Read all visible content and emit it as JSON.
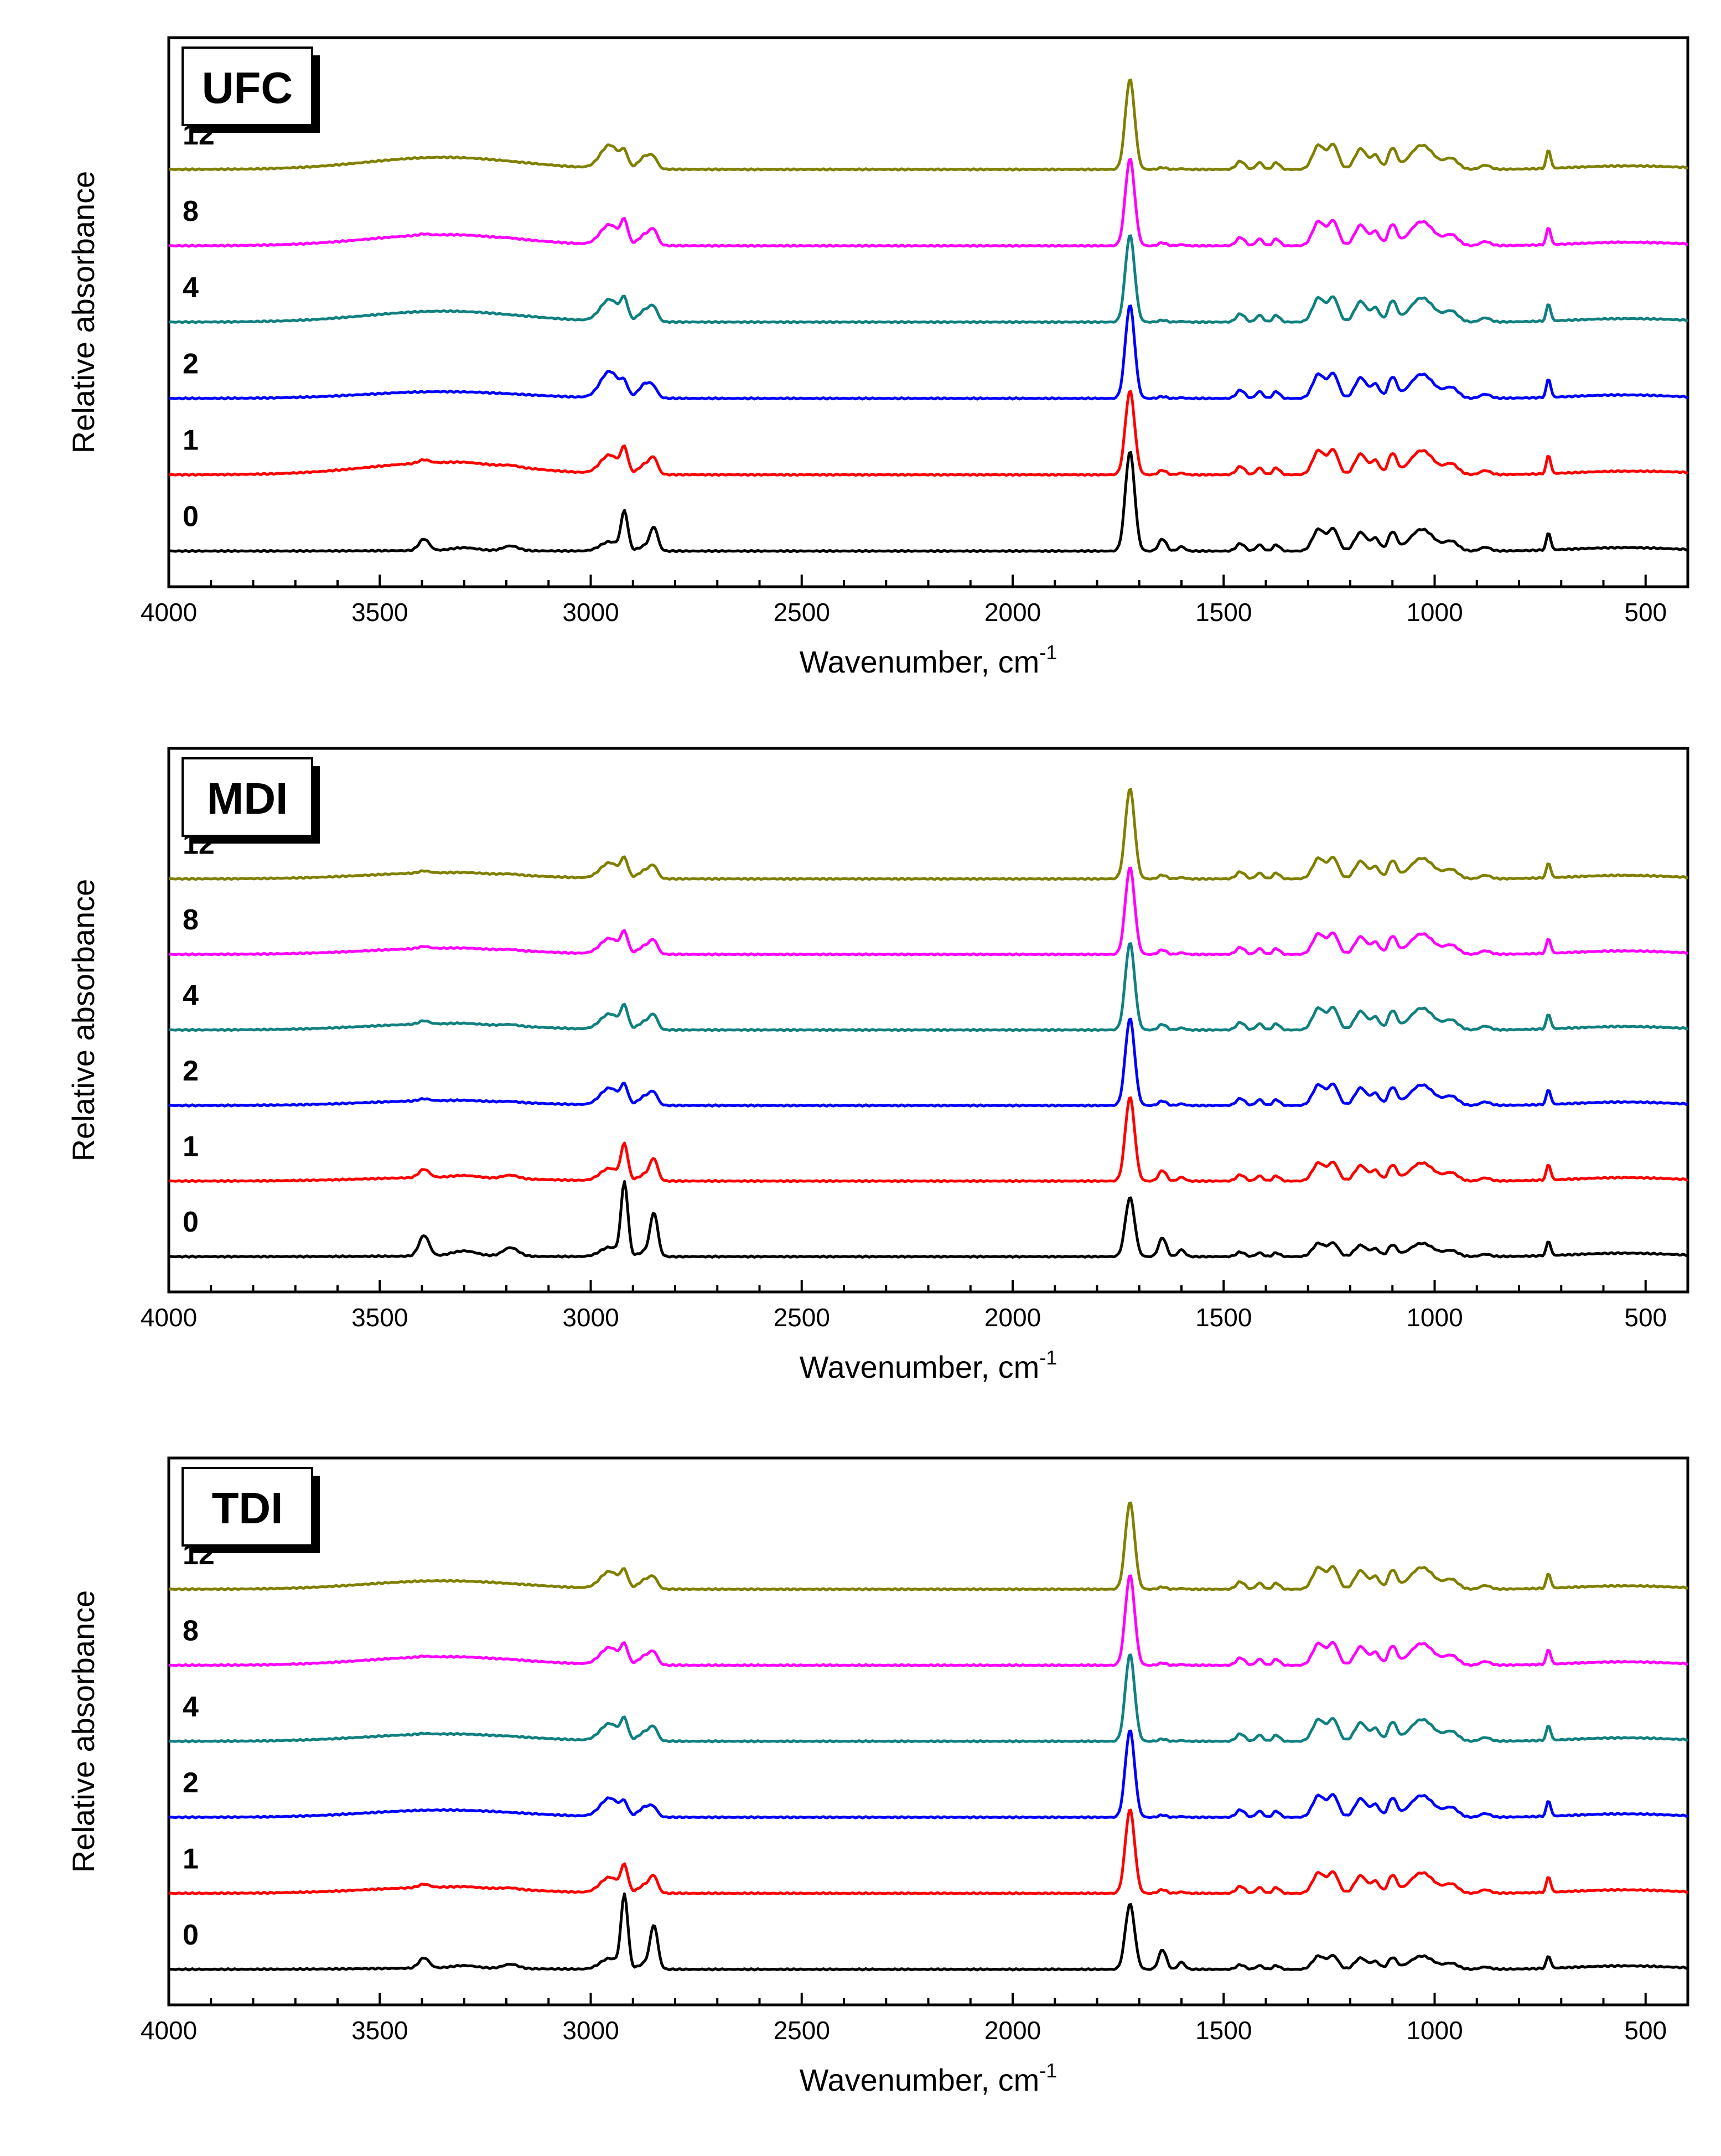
{
  "colors": {
    "0": "#000000",
    "1": "#ff0000",
    "2": "#0000ff",
    "4": "#108080",
    "8": "#ff00ff",
    "12": "#808000",
    "axis": "#000000",
    "tag_shadow": "#000000",
    "tag_fill": "#ffffff"
  },
  "chart_data": [
    {
      "type": "line",
      "panel": "UFC",
      "xlabel": "Wavenumber, cm",
      "xlabel_superscript": "-1",
      "ylabel": "Relative absorbance",
      "xlim": [
        4000,
        400
      ],
      "x_reversed": true,
      "xticks": [
        4000,
        3500,
        3000,
        2500,
        2000,
        1500,
        1000,
        500
      ],
      "xtick_labels": [
        "4000",
        "3500",
        "3000",
        "2500",
        "2000",
        "1500",
        "1000",
        "500"
      ],
      "series": [
        {
          "name": "0",
          "label": "0",
          "color": "#000000",
          "broad_3400": 0.02,
          "ch_sharp": 1.0,
          "ch_hbond": 0.3,
          "co": 1.6,
          "amide": 0.32,
          "nh_sharp": 0.28,
          "fp": 0.9,
          "ir730": 0.42,
          "ends_up": 0.0
        },
        {
          "name": "1",
          "label": "1",
          "color": "#ff0000",
          "broad_3400": 0.5,
          "ch_sharp": 0.6,
          "ch_hbond": 0.6,
          "co": 1.35,
          "amide": 0.12,
          "nh_sharp": 0.08,
          "fp": 1.0,
          "ir730": 0.45,
          "ends_up": 0.1
        },
        {
          "name": "2",
          "label": "2",
          "color": "#0000ff",
          "broad_3400": 0.28,
          "ch_sharp": 0.3,
          "ch_hbond": 0.85,
          "co": 1.5,
          "amide": 0.05,
          "nh_sharp": 0.0,
          "fp": 1.0,
          "ir730": 0.45,
          "ends_up": 0.0
        },
        {
          "name": "4",
          "label": "4",
          "color": "#108080",
          "broad_3400": 0.45,
          "ch_sharp": 0.5,
          "ch_hbond": 0.7,
          "co": 1.4,
          "amide": 0.05,
          "nh_sharp": 0.0,
          "fp": 1.0,
          "ir730": 0.42,
          "ends_up": 0.05
        },
        {
          "name": "8",
          "label": "8",
          "color": "#ff00ff",
          "broad_3400": 0.45,
          "ch_sharp": 0.55,
          "ch_hbond": 0.65,
          "co": 1.4,
          "amide": 0.08,
          "nh_sharp": 0.03,
          "fp": 1.0,
          "ir730": 0.42,
          "ends_up": 0.05
        },
        {
          "name": "12",
          "label": "12",
          "color": "#808000",
          "broad_3400": 0.5,
          "ch_sharp": 0.35,
          "ch_hbond": 0.75,
          "co": 1.45,
          "amide": 0.05,
          "nh_sharp": 0.0,
          "fp": 1.0,
          "ir730": 0.45,
          "ends_up": 0.05
        }
      ]
    },
    {
      "type": "line",
      "panel": "MDI",
      "xlabel": "Wavenumber, cm",
      "xlabel_superscript": "-1",
      "ylabel": "Relative absorbance",
      "xlim": [
        4000,
        400
      ],
      "x_reversed": true,
      "xticks": [
        4000,
        3500,
        3000,
        2500,
        2000,
        1500,
        1000,
        500
      ],
      "xtick_labels": [
        "4000",
        "3500",
        "3000",
        "2500",
        "2000",
        "1500",
        "1000",
        "500"
      ],
      "series": [
        {
          "name": "0",
          "label": "0",
          "color": "#000000",
          "broad_3400": 0.02,
          "ch_sharp": 1.9,
          "ch_hbond": 0.3,
          "co": 0.95,
          "amide": 0.5,
          "nh_sharp": 0.5,
          "fp": 0.55,
          "ir730": 0.35,
          "ends_up": 0.0
        },
        {
          "name": "1",
          "label": "1",
          "color": "#ff0000",
          "broad_3400": 0.15,
          "ch_sharp": 0.9,
          "ch_hbond": 0.4,
          "co": 1.35,
          "amide": 0.28,
          "nh_sharp": 0.2,
          "fp": 0.75,
          "ir730": 0.38,
          "ends_up": 0.0
        },
        {
          "name": "2",
          "label": "2",
          "color": "#0000ff",
          "broad_3400": 0.2,
          "ch_sharp": 0.45,
          "ch_hbond": 0.55,
          "co": 1.4,
          "amide": 0.12,
          "nh_sharp": 0.05,
          "fp": 0.85,
          "ir730": 0.36,
          "ends_up": 0.0
        },
        {
          "name": "4",
          "label": "4",
          "color": "#108080",
          "broad_3400": 0.25,
          "ch_sharp": 0.55,
          "ch_hbond": 0.5,
          "co": 1.4,
          "amide": 0.15,
          "nh_sharp": 0.08,
          "fp": 0.9,
          "ir730": 0.36,
          "ends_up": 0.0
        },
        {
          "name": "8",
          "label": "8",
          "color": "#ff00ff",
          "broad_3400": 0.25,
          "ch_sharp": 0.5,
          "ch_hbond": 0.5,
          "co": 1.4,
          "amide": 0.12,
          "nh_sharp": 0.05,
          "fp": 0.85,
          "ir730": 0.36,
          "ends_up": 0.0
        },
        {
          "name": "12",
          "label": "12",
          "color": "#808000",
          "broad_3400": 0.25,
          "ch_sharp": 0.45,
          "ch_hbond": 0.5,
          "co": 1.45,
          "amide": 0.1,
          "nh_sharp": 0.05,
          "fp": 0.85,
          "ir730": 0.36,
          "ends_up": 0.0
        }
      ]
    },
    {
      "type": "line",
      "panel": "TDI",
      "xlabel": "Wavenumber, cm",
      "xlabel_superscript": "-1",
      "ylabel": "Relative absorbance",
      "xlim": [
        4000,
        400
      ],
      "x_reversed": true,
      "xticks": [
        4000,
        3500,
        3000,
        2500,
        2000,
        1500,
        1000,
        500
      ],
      "xtick_labels": [
        "4000",
        "3500",
        "3000",
        "2500",
        "2000",
        "1500",
        "1000",
        "500"
      ],
      "series": [
        {
          "name": "0",
          "label": "0",
          "color": "#000000",
          "broad_3400": 0.05,
          "ch_sharp": 1.9,
          "ch_hbond": 0.35,
          "co": 1.05,
          "amide": 0.52,
          "nh_sharp": 0.25,
          "fp": 0.55,
          "ir730": 0.3,
          "ends_up": 0.0
        },
        {
          "name": "1",
          "label": "1",
          "color": "#ff0000",
          "broad_3400": 0.25,
          "ch_sharp": 0.65,
          "ch_hbond": 0.5,
          "co": 1.35,
          "amide": 0.1,
          "nh_sharp": 0.08,
          "fp": 0.85,
          "ir730": 0.38,
          "ends_up": 0.0
        },
        {
          "name": "2",
          "label": "2",
          "color": "#0000ff",
          "broad_3400": 0.3,
          "ch_sharp": 0.3,
          "ch_hbond": 0.6,
          "co": 1.4,
          "amide": 0.06,
          "nh_sharp": 0.0,
          "fp": 0.9,
          "ir730": 0.38,
          "ends_up": 0.0
        },
        {
          "name": "4",
          "label": "4",
          "color": "#108080",
          "broad_3400": 0.3,
          "ch_sharp": 0.5,
          "ch_hbond": 0.55,
          "co": 1.4,
          "amide": 0.06,
          "nh_sharp": 0.02,
          "fp": 0.9,
          "ir730": 0.36,
          "ends_up": 0.0
        },
        {
          "name": "8",
          "label": "8",
          "color": "#ff00ff",
          "broad_3400": 0.35,
          "ch_sharp": 0.45,
          "ch_hbond": 0.55,
          "co": 1.45,
          "amide": 0.06,
          "nh_sharp": 0.02,
          "fp": 0.9,
          "ir730": 0.36,
          "ends_up": 0.0
        },
        {
          "name": "12",
          "label": "12",
          "color": "#808000",
          "broad_3400": 0.35,
          "ch_sharp": 0.4,
          "ch_hbond": 0.55,
          "co": 1.4,
          "amide": 0.06,
          "nh_sharp": 0.0,
          "fp": 0.9,
          "ir730": 0.36,
          "ends_up": 0.0
        }
      ]
    }
  ]
}
